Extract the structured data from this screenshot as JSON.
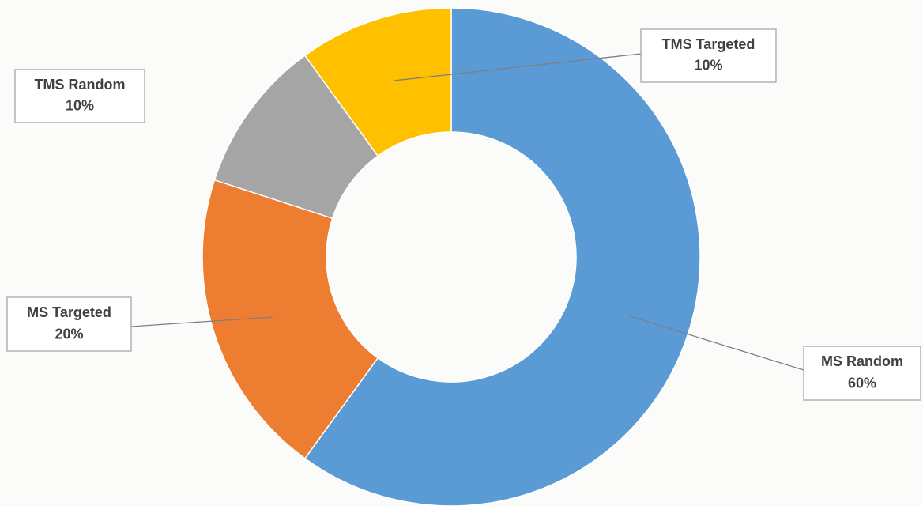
{
  "chart_data": {
    "type": "donut",
    "categories": [
      "MS Random",
      "MS Targeted",
      "TMS Random",
      "TMS Targeted"
    ],
    "values": [
      60,
      20,
      10,
      10
    ],
    "value_labels": [
      "60%",
      "20%",
      "10%",
      "10%"
    ],
    "colors": [
      "#5b9bd5",
      "#ed7d31",
      "#a5a5a5",
      "#ffc000"
    ]
  }
}
